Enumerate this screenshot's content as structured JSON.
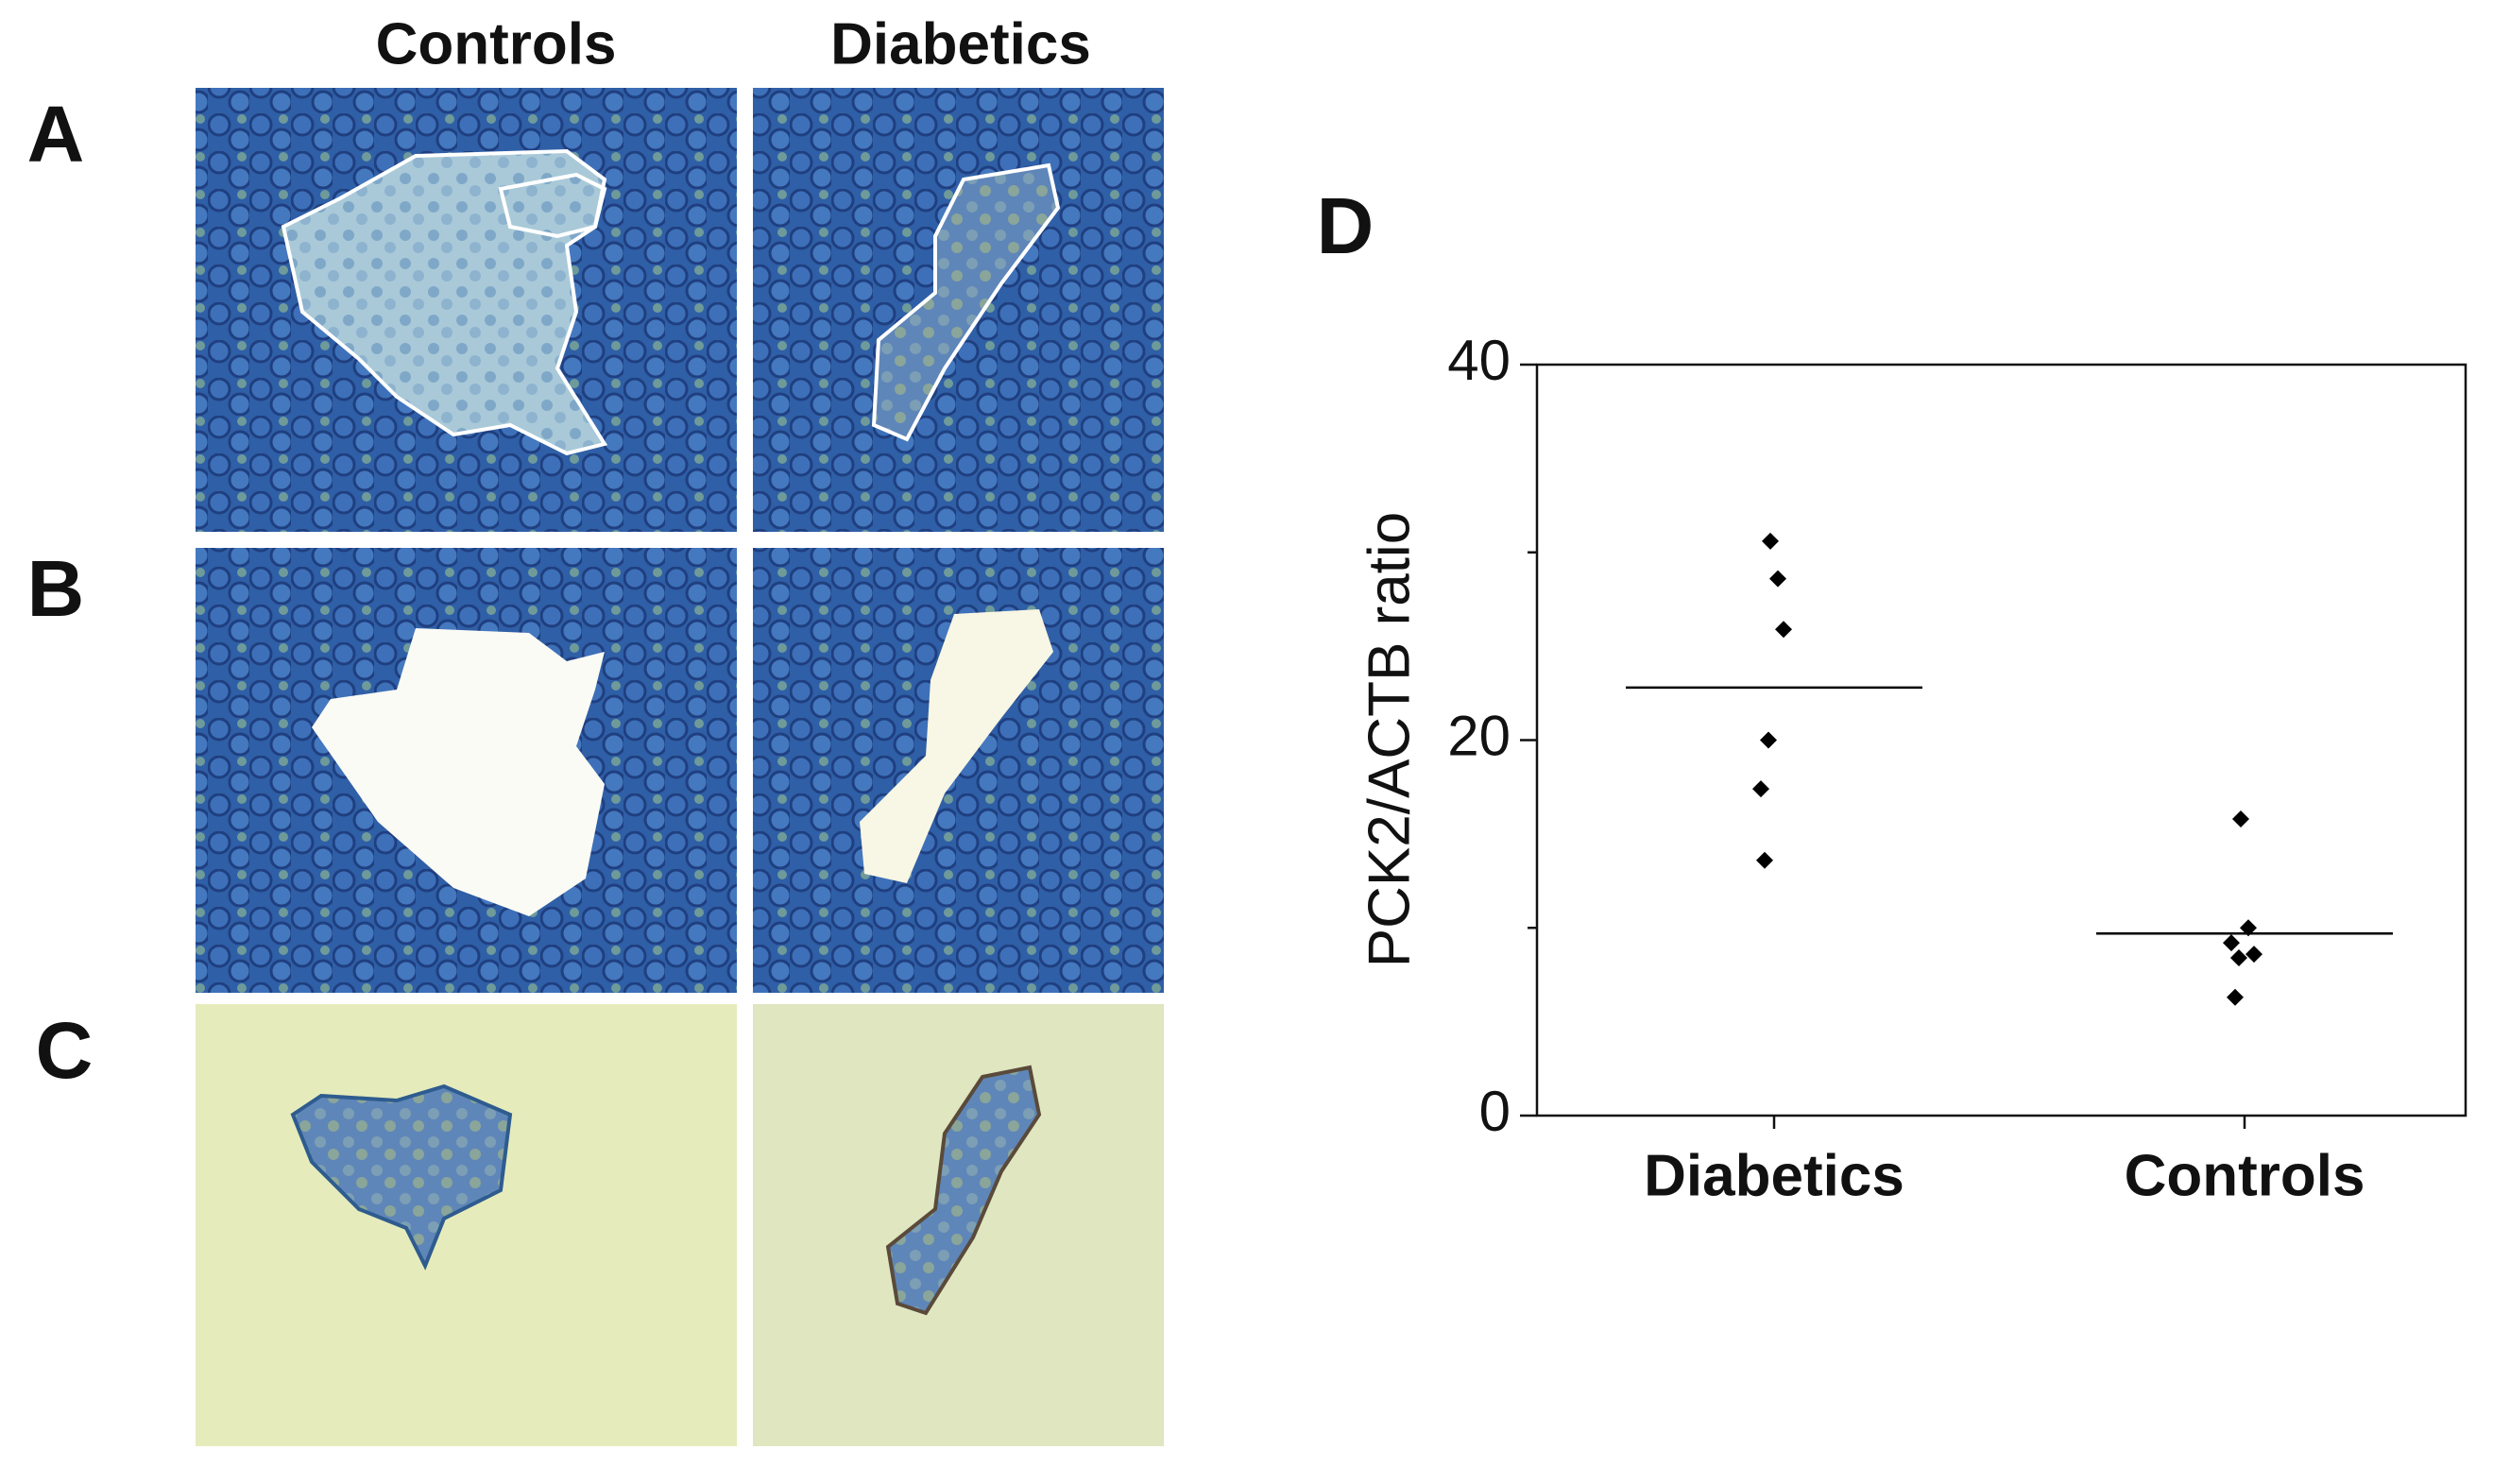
{
  "micrographs": {
    "column_headers": [
      "Controls",
      "Diabetics"
    ],
    "row_labels": [
      "A",
      "B",
      "C"
    ]
  },
  "chart_data": {
    "type": "dot",
    "panel_label": "D",
    "y_label": "PCK2/ACTB ratio",
    "categories": [
      "Diabetics",
      "Controls"
    ],
    "values": [
      [
        30.6,
        28.6,
        25.9,
        20.0,
        17.4,
        13.6
      ],
      [
        15.8,
        10.0,
        8.6,
        8.4,
        9.2,
        6.3
      ]
    ],
    "means": [
      22.8,
      9.7
    ],
    "ylim": [
      0,
      40
    ],
    "yticks": [
      0,
      20,
      40
    ],
    "minor_yticks": [
      10,
      30
    ],
    "color": "#000000"
  }
}
